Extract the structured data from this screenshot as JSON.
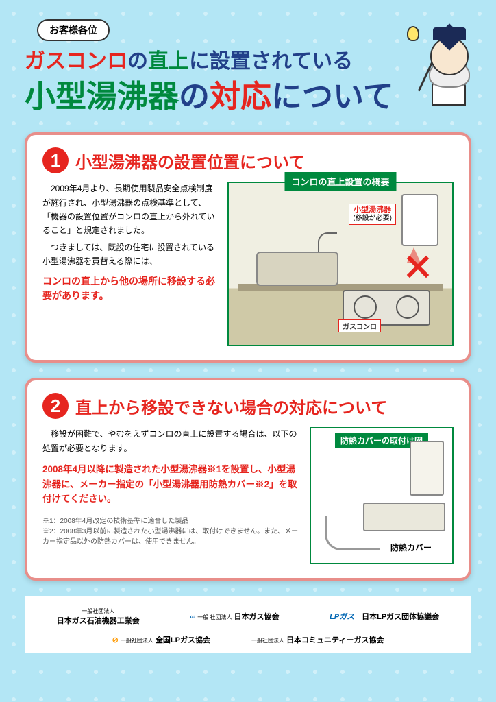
{
  "greeting": "お客様各位",
  "title": {
    "line1_a": "ガスコンロ",
    "line1_b": "の",
    "line1_c": "直上",
    "line1_d": "に設置されている",
    "line2_a": "小型湯沸器",
    "line2_b": "の",
    "line2_c": "対応",
    "line2_d": "について"
  },
  "section1": {
    "num": "1",
    "title": "小型湯沸器の設置位置について",
    "para1": "2009年4月より、長期使用製品安全点検制度が施行され、小型湯沸器の点検基準として、「機器の設置位置がコンロの直上から外れていること」と規定されました。",
    "para2": "つきましては、既設の住宅に設置されている小型湯沸器を買替える際には、",
    "emph": "コンロの直上から他の場所に移設する必要があります。",
    "fig_label": "コンロの直上設置の概要",
    "heater_tag_a": "小型湯沸器",
    "heater_tag_b": "(移設が必要)",
    "stove_tag": "ガスコンロ"
  },
  "section2": {
    "num": "2",
    "title": "直上から移設できない場合の対応について",
    "para1": "移設が困難で、やむをえずコンロの直上に設置する場合は、以下の処置が必要となります。",
    "emph": "2008年4月以降に製造された小型湯沸器※1を設置し、小型湯沸器に、メーカー指定の「小型湯沸器用防熱カバー※2」を取付けてください。",
    "note1": "※1：2008年4月改定の技術基準に適合した製品",
    "note2": "※2：2008年3月以前に製造された小型湯沸器には、取付けできません。また、メーカー指定品以外の防熱カバーは、使用できません。",
    "fig_label": "防熱カバーの取付け図",
    "cover_tag": "防熱カバー"
  },
  "footer": {
    "org1_pre": "一般社団法人",
    "org1": "日本ガス石油機器工業会",
    "org2_pre": "一般 社団法人",
    "org2": "日本ガス協会",
    "org3_brand": "LPガス",
    "org3": "日本LPガス団体協議会",
    "org4_pre": "一般社団法人",
    "org4": "全国LPガス協会",
    "org5_pre": "一般社団法人",
    "org5": "日本コミュニティーガス協会"
  },
  "colors": {
    "red": "#e6251f",
    "green": "#00893e",
    "navy": "#224089",
    "blue": "#0066b3",
    "bg": "#b3e6f5",
    "card_border": "#e88e8a"
  }
}
